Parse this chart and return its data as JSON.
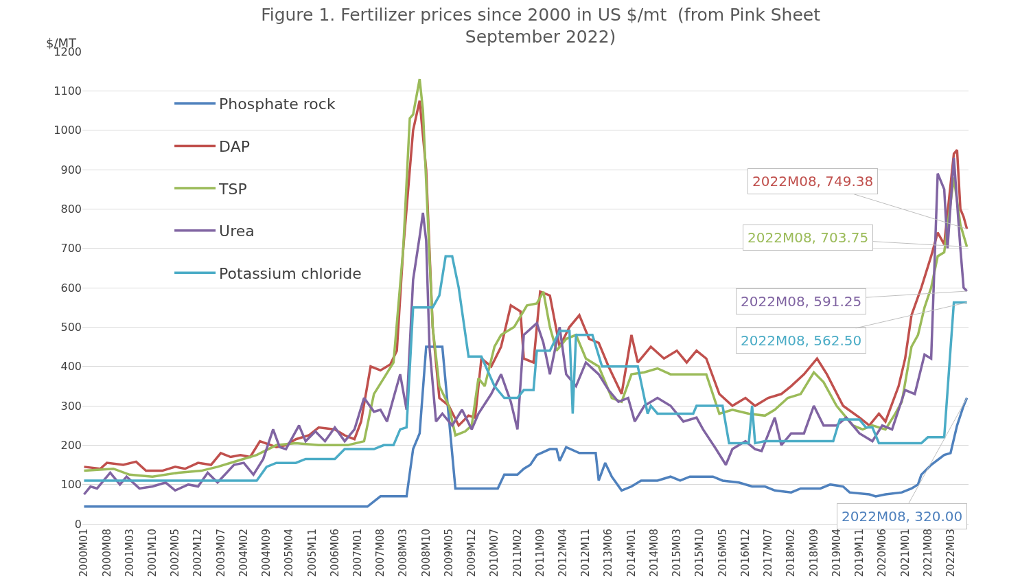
{
  "chart_data": {
    "type": "line",
    "title": "Figure 1. Fertilizer prices since 2000 in US $/mt  (from Pink Sheet September 2022)",
    "ylabel": "$/MT",
    "xlim": [
      "1999-12-16",
      "2022-08-16"
    ],
    "xticks": [
      {
        "value": "2000-01",
        "label": "2000M01"
      },
      {
        "value": "2000-08",
        "label": "2000M08"
      },
      {
        "value": "2001-03",
        "label": "2001M03"
      },
      {
        "value": "2001-10",
        "label": "2001M10"
      },
      {
        "value": "2002-05",
        "label": "2002M05"
      },
      {
        "value": "2002-12",
        "label": "2002M12"
      },
      {
        "value": "2003-07",
        "label": "2003M07"
      },
      {
        "value": "2004-02",
        "label": "2004M02"
      },
      {
        "value": "2004-09",
        "label": "2004M09"
      },
      {
        "value": "2005-04",
        "label": "2005M04"
      },
      {
        "value": "2005-11",
        "label": "2005M11"
      },
      {
        "value": "2006-06",
        "label": "2006M06"
      },
      {
        "value": "2007-01",
        "label": "2007M01"
      },
      {
        "value": "2007-08",
        "label": "2007M08"
      },
      {
        "value": "2008-03",
        "label": "2008M03"
      },
      {
        "value": "2008-10",
        "label": "2008M10"
      },
      {
        "value": "2009-05",
        "label": "2009M05"
      },
      {
        "value": "2009-12",
        "label": "2009M12"
      },
      {
        "value": "2010-07",
        "label": "2010M07"
      },
      {
        "value": "2011-02",
        "label": "2011M02"
      },
      {
        "value": "2011-09",
        "label": "2011M09"
      },
      {
        "value": "2012-04",
        "label": "2012M04"
      },
      {
        "value": "2012-11",
        "label": "2012M11"
      },
      {
        "value": "2013-06",
        "label": "2013M06"
      },
      {
        "value": "2014-01",
        "label": "2014M01"
      },
      {
        "value": "2014-08",
        "label": "2014M08"
      },
      {
        "value": "2015-03",
        "label": "2015M03"
      },
      {
        "value": "2015-10",
        "label": "2015M10"
      },
      {
        "value": "2016-05",
        "label": "2016M05"
      },
      {
        "value": "2016-12",
        "label": "2016M12"
      },
      {
        "value": "2017-07",
        "label": "2017M07"
      },
      {
        "value": "2018-02",
        "label": "2018M02"
      },
      {
        "value": "2018-09",
        "label": "2018M09"
      },
      {
        "value": "2019-04",
        "label": "2019M04"
      },
      {
        "value": "2019-11",
        "label": "2019M11"
      },
      {
        "value": "2020-06",
        "label": "2020M06"
      },
      {
        "value": "2021-01",
        "label": "2021M01"
      },
      {
        "value": "2021-08",
        "label": "2021M08"
      },
      {
        "value": "2022-03",
        "label": "2022M03"
      }
    ],
    "ylim": [
      0,
      1200
    ],
    "yticks": [
      0,
      100,
      200,
      300,
      400,
      500,
      600,
      700,
      800,
      900,
      1000,
      1100,
      1200
    ],
    "grid": "y",
    "legend": "top left",
    "series": [
      {
        "name": "Phosphate rock",
        "color": "#4f81bd",
        "x": [
          "2000-01",
          "2007-04",
          "2007-08",
          "2008-04",
          "2008-06",
          "2008-08",
          "2008-10",
          "2009-03",
          "2009-07",
          "2010-08",
          "2010-10",
          "2011-02",
          "2011-04",
          "2011-06",
          "2011-08",
          "2011-12",
          "2012-02",
          "2012-03",
          "2012-05",
          "2012-09",
          "2013-02",
          "2013-03",
          "2013-05",
          "2013-07",
          "2013-10",
          "2014-01",
          "2014-04",
          "2014-09",
          "2015-01",
          "2015-04",
          "2015-07",
          "2016-02",
          "2016-05",
          "2016-10",
          "2017-02",
          "2017-06",
          "2017-09",
          "2018-02",
          "2018-05",
          "2018-11",
          "2019-02",
          "2019-06",
          "2019-08",
          "2020-02",
          "2020-04",
          "2020-07",
          "2020-12",
          "2021-03",
          "2021-05",
          "2021-06",
          "2021-09",
          "2022-01",
          "2022-03",
          "2022-05",
          "2022-07",
          "2022-08"
        ],
        "values": [
          44,
          44,
          70,
          70,
          190,
          230,
          450,
          450,
          90,
          90,
          125,
          125,
          140,
          150,
          175,
          190,
          190,
          160,
          195,
          180,
          180,
          110,
          155,
          120,
          85,
          95,
          110,
          110,
          120,
          110,
          120,
          120,
          110,
          105,
          95,
          95,
          85,
          80,
          90,
          90,
          100,
          95,
          80,
          75,
          70,
          75,
          80,
          90,
          100,
          125,
          150,
          175,
          180,
          250,
          300,
          320
        ]
      },
      {
        "name": "DAP",
        "color": "#c0504d",
        "x": [
          "2000-01",
          "2000-06",
          "2000-08",
          "2001-01",
          "2001-05",
          "2001-08",
          "2002-01",
          "2002-05",
          "2002-08",
          "2002-12",
          "2003-04",
          "2003-07",
          "2003-10",
          "2004-01",
          "2004-04",
          "2004-07",
          "2004-12",
          "2005-03",
          "2005-06",
          "2005-10",
          "2006-01",
          "2006-06",
          "2006-09",
          "2006-12",
          "2007-02",
          "2007-05",
          "2007-08",
          "2007-11",
          "2008-01",
          "2008-03",
          "2008-06",
          "2008-08",
          "2008-10",
          "2008-12",
          "2009-02",
          "2009-05",
          "2009-08",
          "2009-11",
          "2010-01",
          "2010-03",
          "2010-06",
          "2010-09",
          "2010-12",
          "2011-03",
          "2011-04",
          "2011-07",
          "2011-09",
          "2011-12",
          "2012-03",
          "2012-06",
          "2012-09",
          "2012-12",
          "2013-03",
          "2013-06",
          "2013-10",
          "2014-01",
          "2014-03",
          "2014-07",
          "2014-11",
          "2015-03",
          "2015-06",
          "2015-09",
          "2015-12",
          "2016-04",
          "2016-08",
          "2016-12",
          "2017-03",
          "2017-07",
          "2017-11",
          "2018-02",
          "2018-06",
          "2018-10",
          "2019-01",
          "2019-06",
          "2019-11",
          "2020-02",
          "2020-05",
          "2020-07",
          "2020-11",
          "2021-01",
          "2021-03",
          "2021-06",
          "2021-09",
          "2021-11",
          "2022-01",
          "2022-04",
          "2022-05",
          "2022-06",
          "2022-07",
          "2022-08"
        ],
        "values": [
          145,
          140,
          155,
          150,
          158,
          135,
          135,
          145,
          140,
          155,
          150,
          180,
          170,
          175,
          170,
          210,
          195,
          200,
          215,
          225,
          245,
          240,
          225,
          215,
          260,
          400,
          390,
          405,
          440,
          700,
          1000,
          1075,
          900,
          500,
          320,
          300,
          250,
          275,
          270,
          420,
          400,
          450,
          555,
          540,
          420,
          410,
          590,
          580,
          450,
          500,
          530,
          470,
          460,
          400,
          330,
          480,
          410,
          450,
          420,
          440,
          410,
          440,
          420,
          330,
          300,
          320,
          300,
          320,
          330,
          350,
          380,
          420,
          380,
          300,
          270,
          250,
          280,
          260,
          350,
          420,
          530,
          600,
          680,
          740,
          710,
          940,
          950,
          800,
          780,
          749.38
        ]
      },
      {
        "name": "TSP",
        "color": "#9bbb59",
        "x": [
          "2000-01",
          "2000-10",
          "2001-03",
          "2001-10",
          "2002-06",
          "2003-01",
          "2003-06",
          "2003-12",
          "2004-06",
          "2004-12",
          "2005-06",
          "2006-01",
          "2006-10",
          "2007-03",
          "2007-06",
          "2007-09",
          "2007-12",
          "2008-03",
          "2008-05",
          "2008-06",
          "2008-08",
          "2008-09",
          "2008-12",
          "2009-02",
          "2009-05",
          "2009-07",
          "2009-10",
          "2009-12",
          "2010-02",
          "2010-04",
          "2010-07",
          "2010-09",
          "2011-01",
          "2011-05",
          "2011-08",
          "2011-10",
          "2011-12",
          "2012-02",
          "2012-05",
          "2012-08",
          "2012-11",
          "2013-03",
          "2013-07",
          "2013-10",
          "2014-01",
          "2014-05",
          "2014-09",
          "2015-01",
          "2015-12",
          "2016-04",
          "2016-08",
          "2017-01",
          "2017-06",
          "2017-09",
          "2018-01",
          "2018-05",
          "2018-09",
          "2018-12",
          "2019-04",
          "2019-09",
          "2019-12",
          "2020-03",
          "2020-07",
          "2020-10",
          "2020-12",
          "2021-03",
          "2021-05",
          "2021-07",
          "2021-09",
          "2021-11",
          "2022-01",
          "2022-04",
          "2022-06",
          "2022-08"
        ],
        "values": [
          135,
          140,
          125,
          120,
          130,
          135,
          145,
          160,
          175,
          200,
          205,
          200,
          200,
          210,
          330,
          370,
          410,
          700,
          1030,
          1040,
          1130,
          1050,
          500,
          350,
          300,
          225,
          235,
          250,
          370,
          350,
          450,
          480,
          500,
          555,
          560,
          590,
          500,
          440,
          470,
          480,
          420,
          400,
          320,
          310,
          380,
          385,
          395,
          380,
          380,
          280,
          290,
          280,
          275,
          290,
          320,
          330,
          385,
          360,
          300,
          250,
          240,
          250,
          240,
          280,
          310,
          450,
          480,
          550,
          600,
          680,
          690,
          880,
          760,
          703.75
        ]
      },
      {
        "name": "Urea",
        "color": "#8064a2",
        "x": [
          "2000-01",
          "2000-03",
          "2000-05",
          "2000-09",
          "2000-12",
          "2001-02",
          "2001-06",
          "2001-10",
          "2002-02",
          "2002-05",
          "2002-09",
          "2002-12",
          "2003-03",
          "2003-06",
          "2003-11",
          "2004-02",
          "2004-05",
          "2004-08",
          "2004-11",
          "2005-01",
          "2005-03",
          "2005-07",
          "2005-09",
          "2005-12",
          "2006-03",
          "2006-06",
          "2006-09",
          "2006-12",
          "2007-03",
          "2007-06",
          "2007-08",
          "2007-10",
          "2007-12",
          "2008-02",
          "2008-04",
          "2008-06",
          "2008-08",
          "2008-09",
          "2008-10",
          "2008-11",
          "2009-01",
          "2009-03",
          "2009-06",
          "2009-09",
          "2009-12",
          "2010-02",
          "2010-06",
          "2010-09",
          "2010-12",
          "2011-02",
          "2011-04",
          "2011-08",
          "2011-10",
          "2011-12",
          "2012-03",
          "2012-05",
          "2012-08",
          "2012-11",
          "2013-03",
          "2013-06",
          "2013-09",
          "2013-12",
          "2014-02",
          "2014-05",
          "2014-09",
          "2015-01",
          "2015-05",
          "2015-09",
          "2015-11",
          "2016-03",
          "2016-06",
          "2016-08",
          "2016-12",
          "2017-03",
          "2017-05",
          "2017-09",
          "2017-11",
          "2018-02",
          "2018-06",
          "2018-09",
          "2018-12",
          "2019-04",
          "2019-07",
          "2019-11",
          "2020-03",
          "2020-06",
          "2020-09",
          "2021-01",
          "2021-04",
          "2021-07",
          "2021-09",
          "2021-11",
          "2022-01",
          "2022-02",
          "2022-04",
          "2022-06",
          "2022-07",
          "2022-08"
        ],
        "values": [
          75,
          95,
          90,
          130,
          100,
          120,
          90,
          95,
          105,
          85,
          100,
          95,
          130,
          105,
          150,
          155,
          125,
          165,
          240,
          195,
          190,
          250,
          210,
          235,
          210,
          245,
          210,
          240,
          320,
          285,
          290,
          260,
          320,
          380,
          290,
          620,
          730,
          790,
          720,
          450,
          260,
          280,
          250,
          290,
          240,
          280,
          330,
          380,
          310,
          240,
          480,
          510,
          460,
          380,
          500,
          380,
          350,
          410,
          380,
          340,
          310,
          320,
          260,
          300,
          320,
          300,
          260,
          270,
          240,
          190,
          150,
          190,
          210,
          190,
          185,
          270,
          200,
          230,
          230,
          300,
          250,
          250,
          270,
          230,
          210,
          250,
          240,
          340,
          330,
          430,
          420,
          890,
          850,
          700,
          930,
          700,
          600,
          591.25
        ]
      },
      {
        "name": "Potassium chloride",
        "color": "#4bacc6",
        "x": [
          "2000-01",
          "2004-06",
          "2004-09",
          "2004-12",
          "2005-06",
          "2005-09",
          "2006-06",
          "2006-09",
          "2007-06",
          "2007-09",
          "2007-12",
          "2008-02",
          "2008-04",
          "2008-06",
          "2008-12",
          "2009-02",
          "2009-04",
          "2009-06",
          "2009-08",
          "2009-11",
          "2010-03",
          "2010-07",
          "2010-10",
          "2011-02",
          "2011-04",
          "2011-07",
          "2011-08",
          "2011-12",
          "2012-03",
          "2012-06",
          "2012-07",
          "2012-08",
          "2013-01",
          "2013-04",
          "2014-03",
          "2014-06",
          "2014-07",
          "2014-09",
          "2015-08",
          "2015-09",
          "2016-05",
          "2016-07",
          "2017-01",
          "2017-02",
          "2017-03",
          "2017-06",
          "2019-03",
          "2019-05",
          "2019-11",
          "2020-01",
          "2020-03",
          "2020-05",
          "2021-06",
          "2021-08",
          "2022-01",
          "2022-04",
          "2022-08"
        ],
        "values": [
          110,
          110,
          145,
          155,
          155,
          165,
          165,
          190,
          190,
          200,
          200,
          240,
          245,
          550,
          550,
          580,
          680,
          680,
          600,
          425,
          425,
          350,
          320,
          320,
          340,
          340,
          440,
          440,
          490,
          490,
          280,
          480,
          480,
          400,
          400,
          280,
          300,
          280,
          280,
          300,
          300,
          205,
          205,
          300,
          205,
          210,
          210,
          265,
          265,
          245,
          245,
          205,
          205,
          220,
          220,
          562.5,
          562.5
        ]
      }
    ],
    "annotations": [
      {
        "text": "2022M08, 749.38",
        "x": "2022-08",
        "y": 749.38
      },
      {
        "text": "2022M08, 703.75",
        "x": "2022-08",
        "y": 703.75
      },
      {
        "text": "2022M08, 591.25",
        "x": "2022-08",
        "y": 591.25
      },
      {
        "text": "2022M08, 562.50",
        "x": "2022-08",
        "y": 562.5
      },
      {
        "text": "2022M08, 320.00",
        "x": "2022-08",
        "y": 320
      }
    ]
  }
}
